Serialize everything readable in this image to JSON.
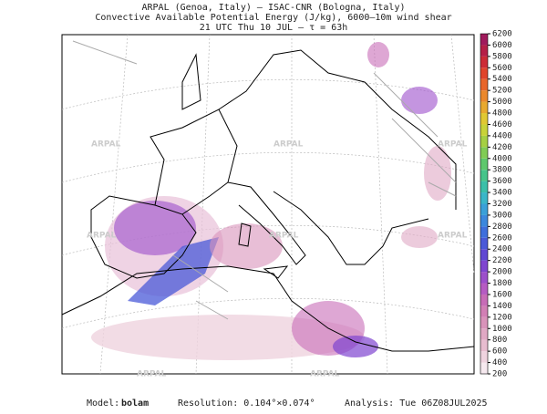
{
  "header": {
    "line1": "ARPAL (Genoa, Italy)  –  ISAC-CNR (Bologna, Italy)",
    "line2": "Convective Available Potential Energy (J/kg), 6000–10m wind shear",
    "line3": "21 UTC Thu 10 JUL  –  τ = 63h"
  },
  "watermark": "ARPAL",
  "colorbar": {
    "ticks": [
      200,
      400,
      600,
      800,
      1000,
      1200,
      1400,
      1600,
      1800,
      2000,
      2200,
      2400,
      2600,
      2800,
      3000,
      3200,
      3400,
      3600,
      3800,
      4000,
      4200,
      4400,
      4600,
      4800,
      5000,
      5200,
      5400,
      5600,
      5800,
      6000,
      6200
    ],
    "colors": [
      "#f6e9ef",
      "#efd3df",
      "#e7bccf",
      "#e0a8c4",
      "#d993ba",
      "#d27fb5",
      "#c86cb7",
      "#b65bc3",
      "#9c4fcb",
      "#7f45d0",
      "#6048d3",
      "#4a59d8",
      "#3f6fdc",
      "#3c88dd",
      "#3aa0d8",
      "#3ab6c8",
      "#3bbfa9",
      "#45c48a",
      "#5ec86c",
      "#80cc55",
      "#a5d043",
      "#c8d338",
      "#e0c832",
      "#e8a92e",
      "#ea882c",
      "#e8662b",
      "#e0442b",
      "#cc2b36",
      "#b51f47",
      "#a01a5c"
    ]
  },
  "footer": {
    "model_label": "Model:",
    "model": "bolam",
    "resolution": "Resolution: 0.104°×0.074°",
    "analysis": "Analysis: Tue 06Z08JUL2025"
  }
}
